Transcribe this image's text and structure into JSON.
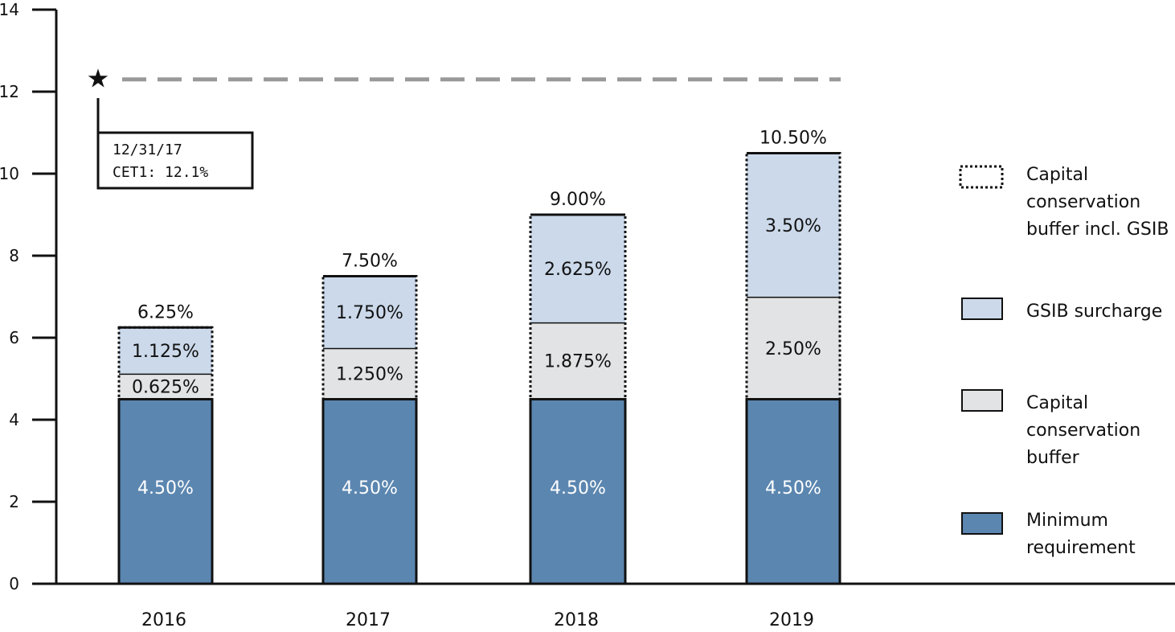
{
  "chart_data": {
    "type": "bar",
    "stacked": true,
    "categories": [
      "2016",
      "2017",
      "2018",
      "2019"
    ],
    "ylim": [
      0,
      14
    ],
    "yticks": [
      0,
      2,
      4,
      6,
      8,
      10,
      12,
      14
    ],
    "grid": false,
    "series": [
      {
        "name": "Minimum requirement",
        "values": [
          4.5,
          4.5,
          4.5,
          4.5
        ],
        "labels": [
          "4.50%",
          "4.50%",
          "4.50%",
          "4.50%"
        ],
        "color": "#5b86b0"
      },
      {
        "name": "Capital conservation buffer",
        "values": [
          0.625,
          1.25,
          1.875,
          2.5
        ],
        "labels": [
          "0.625%",
          "1.250%",
          "1.875%",
          "2.50%"
        ],
        "color": "#e2e3e4"
      },
      {
        "name": "GSIB surcharge",
        "values": [
          1.125,
          1.75,
          2.625,
          3.5
        ],
        "labels": [
          "1.125%",
          "1.750%",
          "2.625%",
          "3.50%"
        ],
        "color": "#cbd9ea"
      }
    ],
    "totals": [
      "6.25%",
      "7.50%",
      "9.00%",
      "10.50%"
    ],
    "reference_line": {
      "value": 12.3,
      "style": "dashed"
    },
    "annotation": {
      "line1": "12/31/17",
      "line2": "CET1: 12.1%"
    },
    "legend": {
      "placement": "right",
      "items": [
        {
          "lines": [
            "Capital",
            "conservation",
            "buffer incl. GSIB"
          ],
          "style": "dotted-outline"
        },
        {
          "lines": [
            "GSIB surcharge"
          ],
          "color": "#cbd9ea"
        },
        {
          "lines": [
            "Capital",
            "conservation",
            "buffer"
          ],
          "color": "#e2e3e4"
        },
        {
          "lines": [
            "Minimum",
            "requirement"
          ],
          "color": "#5b86b0"
        }
      ]
    }
  }
}
